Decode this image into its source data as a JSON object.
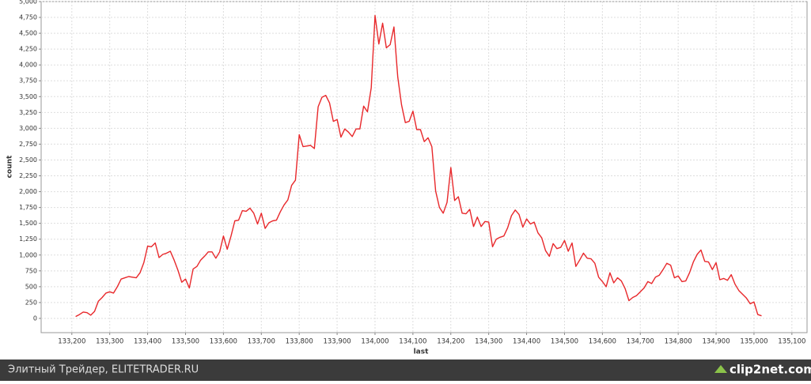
{
  "chart_data": {
    "type": "line",
    "xlabel": "last",
    "ylabel": "count",
    "grid": true,
    "xlim": [
      133119,
      135140
    ],
    "ylim": [
      -225,
      5000
    ],
    "xticks": [
      {
        "value": 133200,
        "label": "133,200"
      },
      {
        "value": 133300,
        "label": "133,300"
      },
      {
        "value": 133400,
        "label": "133,400"
      },
      {
        "value": 133500,
        "label": "133,500"
      },
      {
        "value": 133600,
        "label": "133,600"
      },
      {
        "value": 133700,
        "label": "133,700"
      },
      {
        "value": 133800,
        "label": "133,800"
      },
      {
        "value": 133900,
        "label": "133,900"
      },
      {
        "value": 134000,
        "label": "134,000"
      },
      {
        "value": 134100,
        "label": "134,100"
      },
      {
        "value": 134200,
        "label": "134,200"
      },
      {
        "value": 134300,
        "label": "134,300"
      },
      {
        "value": 134400,
        "label": "134,400"
      },
      {
        "value": 134500,
        "label": "134,500"
      },
      {
        "value": 134600,
        "label": "134,600"
      },
      {
        "value": 134700,
        "label": "134,700"
      },
      {
        "value": 134800,
        "label": "134,800"
      },
      {
        "value": 134900,
        "label": "134,900"
      },
      {
        "value": 135000,
        "label": "135,000"
      },
      {
        "value": 135100,
        "label": "135,100"
      }
    ],
    "yticks": [
      0,
      250,
      500,
      750,
      {
        "value": 1000,
        "label": "1,000"
      },
      {
        "value": 1250,
        "label": "1,250"
      },
      {
        "value": 1500,
        "label": "1,500"
      },
      {
        "value": 1750,
        "label": "1,750"
      },
      {
        "value": 2000,
        "label": "2,000"
      },
      {
        "value": 2250,
        "label": "2,250"
      },
      {
        "value": 2500,
        "label": "2,500"
      },
      {
        "value": 2750,
        "label": "2,750"
      },
      {
        "value": 3000,
        "label": "3,000"
      },
      {
        "value": 3250,
        "label": "3,250"
      },
      {
        "value": 3500,
        "label": "3,500"
      },
      {
        "value": 3750,
        "label": "3,750"
      },
      {
        "value": 4000,
        "label": "4,000"
      },
      {
        "value": 4250,
        "label": "4,250"
      },
      {
        "value": 4500,
        "label": "4,500"
      },
      {
        "value": 4750,
        "label": "4,750"
      },
      {
        "value": 5000,
        "label": "5,000"
      }
    ],
    "x": [
      133210,
      133220,
      133230,
      133240,
      133250,
      133260,
      133270,
      133280,
      133290,
      133300,
      133310,
      133320,
      133330,
      133340,
      133350,
      133360,
      133370,
      133380,
      133390,
      133400,
      133410,
      133420,
      133430,
      133440,
      133450,
      133460,
      133470,
      133480,
      133490,
      133500,
      133510,
      133520,
      133530,
      133540,
      133550,
      133560,
      133570,
      133580,
      133590,
      133600,
      133610,
      133620,
      133630,
      133640,
      133650,
      133660,
      133670,
      133680,
      133690,
      133700,
      133710,
      133720,
      133730,
      133740,
      133750,
      133760,
      133770,
      133780,
      133790,
      133800,
      133810,
      133820,
      133830,
      133840,
      133850,
      133860,
      133870,
      133880,
      133890,
      133900,
      133910,
      133920,
      133930,
      133940,
      133950,
      133960,
      133970,
      133980,
      133990,
      134000,
      134010,
      134020,
      134030,
      134040,
      134050,
      134060,
      134070,
      134080,
      134090,
      134100,
      134110,
      134120,
      134130,
      134140,
      134150,
      134160,
      134170,
      134180,
      134190,
      134200,
      134210,
      134220,
      134230,
      134240,
      134250,
      134260,
      134270,
      134280,
      134290,
      134300,
      134310,
      134320,
      134330,
      134340,
      134350,
      134360,
      134370,
      134380,
      134390,
      134400,
      134410,
      134420,
      134430,
      134440,
      134450,
      134460,
      134470,
      134480,
      134490,
      134500,
      134510,
      134520,
      134530,
      134540,
      134550,
      134560,
      134570,
      134580,
      134590,
      134600,
      134610,
      134620,
      134630,
      134640,
      134650,
      134660,
      134670,
      134680,
      134690,
      134700,
      134710,
      134720,
      134730,
      134740,
      134750,
      134760,
      134770,
      134780,
      134790,
      134800,
      134810,
      134820,
      134830,
      134840,
      134850,
      134860,
      134870,
      134880,
      134890,
      134900,
      134910,
      134920,
      134930,
      134940,
      134950,
      134960,
      134970,
      134980,
      134990,
      135000,
      135010,
      135020
    ],
    "series": [
      {
        "color": "#e8282b",
        "values": [
          30,
          60,
          100,
          90,
          50,
          110,
          270,
          330,
          400,
          420,
          400,
          500,
          620,
          640,
          660,
          650,
          640,
          720,
          880,
          1140,
          1130,
          1190,
          960,
          1010,
          1030,
          1060,
          920,
          760,
          570,
          620,
          480,
          780,
          820,
          920,
          980,
          1050,
          1050,
          950,
          1050,
          1300,
          1090,
          1300,
          1540,
          1550,
          1700,
          1690,
          1740,
          1660,
          1490,
          1660,
          1420,
          1510,
          1540,
          1550,
          1680,
          1790,
          1870,
          2100,
          2180,
          2900,
          2710,
          2720,
          2730,
          2680,
          3340,
          3490,
          3520,
          3400,
          3110,
          3140,
          2860,
          2990,
          2940,
          2870,
          2990,
          2990,
          3350,
          3260,
          3640,
          4780,
          4330,
          4660,
          4270,
          4320,
          4600,
          3810,
          3370,
          3090,
          3110,
          3270,
          2980,
          2980,
          2790,
          2850,
          2710,
          2010,
          1750,
          1660,
          1830,
          2380,
          1860,
          1920,
          1660,
          1650,
          1720,
          1450,
          1600,
          1450,
          1530,
          1520,
          1130,
          1250,
          1280,
          1300,
          1430,
          1620,
          1710,
          1640,
          1440,
          1570,
          1490,
          1520,
          1350,
          1270,
          1070,
          980,
          1180,
          1100,
          1120,
          1230,
          1060,
          1190,
          820,
          920,
          1030,
          950,
          940,
          870,
          650,
          580,
          500,
          720,
          560,
          640,
          590,
          470,
          280,
          330,
          360,
          420,
          480,
          580,
          550,
          650,
          680,
          770,
          870,
          840,
          640,
          670,
          580,
          590,
          720,
          890,
          1010,
          1080,
          900,
          890,
          770,
          880,
          610,
          630,
          600,
          690,
          540,
          440,
          380,
          320,
          230,
          260,
          60,
          40
        ]
      }
    ]
  },
  "footer": {
    "text": "Элитный Трейдер, ELITETRADER.RU",
    "logo": "clip2net.com"
  }
}
